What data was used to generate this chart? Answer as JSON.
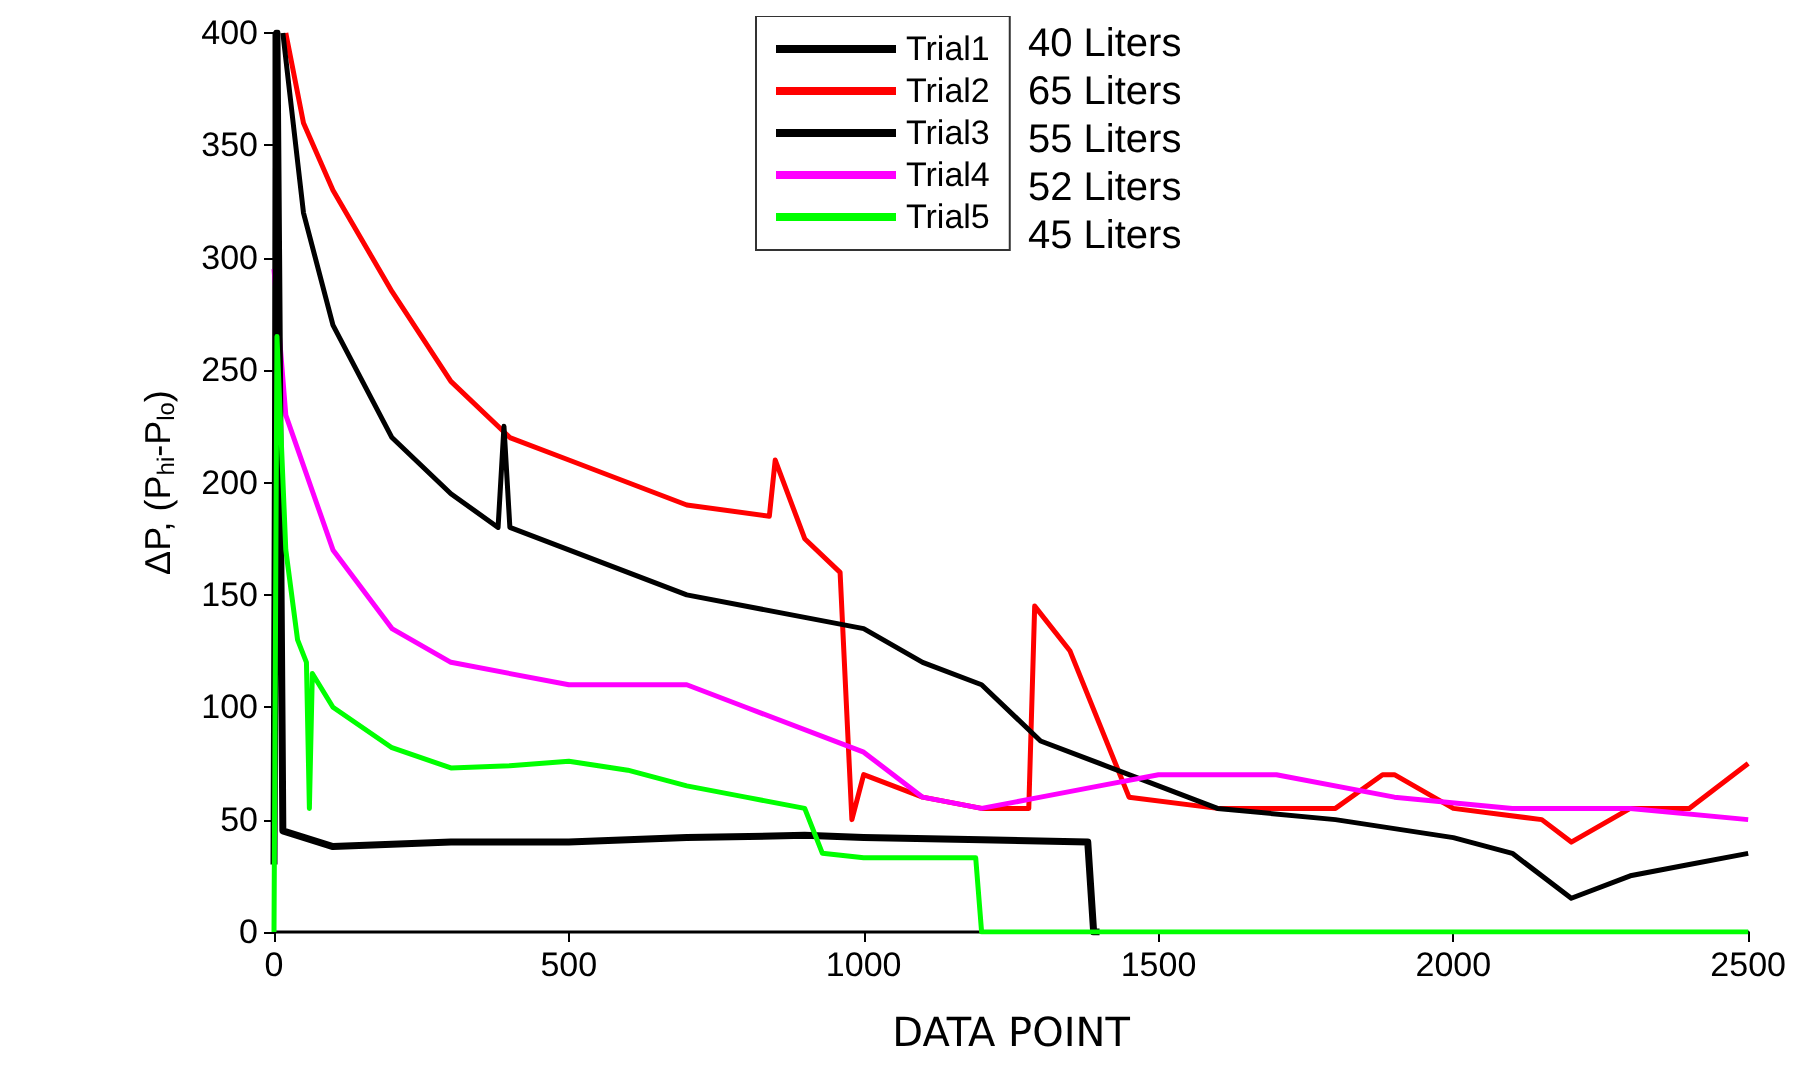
{
  "chart_data": {
    "type": "line",
    "xlabel": "DATA POINT",
    "ylabel": "ΔP, (P$_{hi}$-P$_{lo}$)",
    "xlim": [
      0,
      2500
    ],
    "xticks": [
      0,
      500,
      1000,
      1500,
      2000,
      2500
    ],
    "ylim": [
      0,
      400
    ],
    "yticks": [
      0,
      50,
      100,
      150,
      200,
      250,
      300,
      350,
      400
    ],
    "grid": false,
    "legend": "top",
    "marker": "none",
    "line_style": "solid",
    "annotations": [
      "40 Liters",
      "65 Liters",
      "55 Liters",
      "52 Liters",
      "45 Liters"
    ],
    "series": [
      {
        "name": "Trial1",
        "color": "#000000",
        "x": [
          0,
          5,
          15,
          100,
          300,
          500,
          700,
          900,
          1000,
          1200,
          1380,
          1390,
          1400
        ],
        "values": [
          30,
          400,
          45,
          38,
          40,
          40,
          42,
          43,
          42,
          41,
          40,
          0,
          0
        ]
      },
      {
        "name": "Trial2",
        "color": "#ff0000",
        "x": [
          20,
          50,
          100,
          200,
          300,
          400,
          500,
          600,
          700,
          840,
          850,
          900,
          960,
          980,
          1000,
          1100,
          1200,
          1280,
          1290,
          1350,
          1450,
          1600,
          1800,
          1880,
          1900,
          2000,
          2150,
          2200,
          2300,
          2400,
          2500
        ],
        "values": [
          400,
          360,
          330,
          285,
          245,
          220,
          210,
          200,
          190,
          185,
          210,
          175,
          160,
          50,
          70,
          60,
          55,
          55,
          145,
          125,
          60,
          55,
          55,
          70,
          70,
          55,
          50,
          40,
          55,
          55,
          75
        ]
      },
      {
        "name": "Trial3",
        "color": "#000000",
        "x": [
          15,
          50,
          100,
          200,
          300,
          380,
          390,
          400,
          500,
          700,
          900,
          1000,
          1100,
          1200,
          1300,
          1400,
          1500,
          1600,
          1800,
          2000,
          2100,
          2200,
          2300,
          2400,
          2500
        ],
        "values": [
          400,
          320,
          270,
          220,
          195,
          180,
          225,
          180,
          170,
          150,
          140,
          135,
          120,
          110,
          85,
          75,
          65,
          55,
          50,
          42,
          35,
          15,
          25,
          30,
          35
        ]
      },
      {
        "name": "Trial4",
        "color": "#ff00ff",
        "x": [
          0,
          20,
          100,
          200,
          300,
          500,
          700,
          800,
          1000,
          1100,
          1200,
          1300,
          1400,
          1500,
          1700,
          1900,
          2100,
          2300,
          2500
        ],
        "values": [
          295,
          230,
          170,
          135,
          120,
          110,
          110,
          100,
          80,
          60,
          55,
          60,
          65,
          70,
          70,
          60,
          55,
          55,
          50
        ]
      },
      {
        "name": "Trial5",
        "color": "#00ff00",
        "x": [
          0,
          5,
          20,
          40,
          55,
          60,
          65,
          100,
          200,
          300,
          400,
          500,
          600,
          700,
          800,
          900,
          930,
          1000,
          1190,
          1200,
          2500
        ],
        "values": [
          0,
          265,
          170,
          130,
          120,
          55,
          115,
          100,
          82,
          73,
          74,
          76,
          72,
          65,
          60,
          55,
          35,
          33,
          33,
          0,
          0
        ]
      }
    ]
  }
}
